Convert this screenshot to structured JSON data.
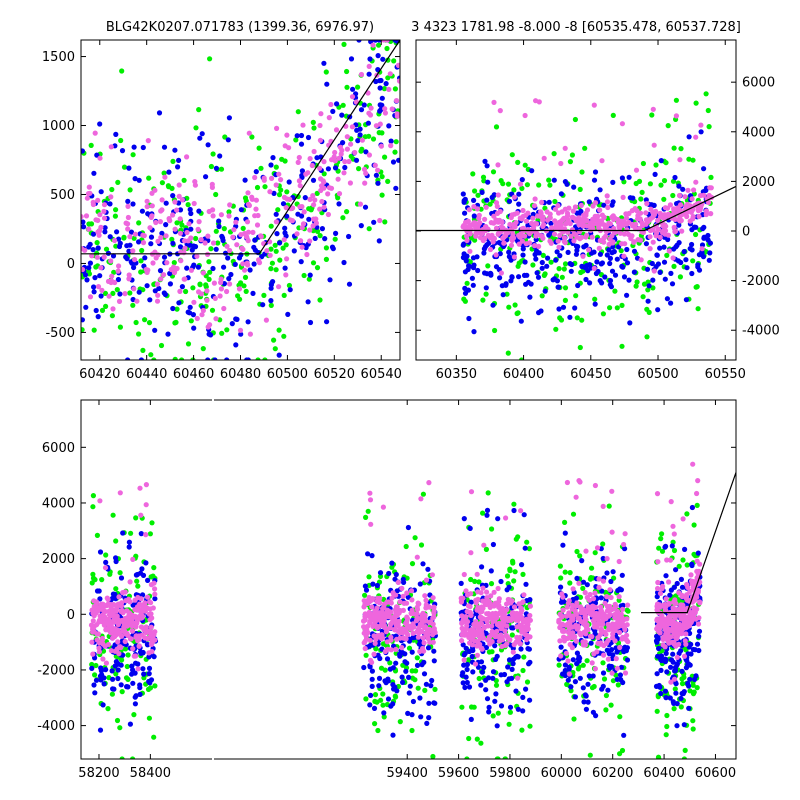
{
  "chart_data": [
    {
      "type": "scatter",
      "panel": "top-left",
      "title": "BLG42K0207.071783 (1399.36, 6976.97)",
      "xlim": [
        60412,
        60548
      ],
      "ylim": [
        -700,
        1620
      ],
      "xticks": [
        60420,
        60440,
        60460,
        60480,
        60500,
        60520,
        60540
      ],
      "yticks": [
        -500,
        0,
        500,
        1000,
        1500
      ],
      "ytick_side": "left",
      "grid": false,
      "colors": {
        "green": "#00ee00",
        "blue": "#0000ee",
        "pink": "#ee66dd",
        "model": "#000000"
      },
      "model_line": {
        "x": [
          60412,
          60488,
          60548
        ],
        "y": [
          70,
          70,
          1620
        ]
      },
      "series": [
        {
          "color": "#00ee00",
          "n": 320,
          "x_range": [
            60412,
            60548
          ],
          "y_center": 80,
          "y_spread": 420,
          "y_min": -700,
          "y_max": 1620
        },
        {
          "color": "#0000ee",
          "n": 360,
          "x_range": [
            60412,
            60548
          ],
          "y_center": 60,
          "y_spread": 380,
          "y_min": -700,
          "y_max": 1620
        },
        {
          "color": "#ee66dd",
          "n": 340,
          "x_range": [
            60412,
            60548
          ],
          "y_center": 120,
          "y_spread": 300,
          "y_min": -700,
          "y_max": 1620
        }
      ]
    },
    {
      "type": "scatter",
      "panel": "top-right",
      "title": "3 4323 1781.98 -8.000 -8 [60535.478, 60537.728]",
      "xlim": [
        60320,
        60558
      ],
      "ylim": [
        -5200,
        7700
      ],
      "xticks": [
        60350,
        60400,
        60450,
        60500,
        60550
      ],
      "yticks": [
        -4000,
        -2000,
        0,
        2000,
        4000,
        6000
      ],
      "ytick_side": "right",
      "grid": false,
      "model_line": {
        "x": [
          60320,
          60490,
          60558
        ],
        "y": [
          20,
          20,
          1800
        ]
      },
      "series": [
        {
          "color": "#00ee00",
          "n": 260,
          "x_range": [
            60355,
            60540
          ],
          "y_center": -400,
          "y_spread": 1800,
          "y_min": -5200,
          "y_max": 7600
        },
        {
          "color": "#0000ee",
          "n": 420,
          "x_range": [
            60355,
            60540
          ],
          "y_center": -700,
          "y_spread": 1300,
          "y_min": -5200,
          "y_max": 4000
        },
        {
          "color": "#ee66dd",
          "n": 480,
          "x_range": [
            60355,
            60540
          ],
          "y_center": 150,
          "y_spread": 420,
          "y_min": -5200,
          "y_max": 7000
        }
      ]
    },
    {
      "type": "scatter",
      "panel": "bottom",
      "title": "",
      "xlim": [
        58130,
        60680
      ],
      "ylim": [
        -5200,
        7700
      ],
      "xticks": [
        58200,
        58400,
        59400,
        59600,
        59800,
        60000,
        60200,
        60400,
        60600
      ],
      "yticks": [
        -4000,
        -2000,
        0,
        2000,
        4000,
        6000
      ],
      "ytick_side": "left",
      "grid": false,
      "model_line": {
        "x": [
          60310,
          60490,
          60680
        ],
        "y": [
          60,
          60,
          5100
        ]
      },
      "seasons": [
        {
          "x_range": [
            58170,
            58420
          ]
        },
        {
          "x_range": [
            59230,
            59510
          ]
        },
        {
          "x_range": [
            59610,
            59880
          ]
        },
        {
          "x_range": [
            59990,
            60260
          ]
        },
        {
          "x_range": [
            60370,
            60540
          ]
        }
      ],
      "series": [
        {
          "color": "#00ee00",
          "n_per_season": 120,
          "y_center": -1000,
          "y_spread": 1900,
          "y_min": -5200,
          "y_max": 7600
        },
        {
          "color": "#0000ee",
          "n_per_season": 180,
          "y_center": -900,
          "y_spread": 1300,
          "y_min": -5200,
          "y_max": 7000
        },
        {
          "color": "#ee66dd",
          "n_per_season": 260,
          "y_center": -300,
          "y_spread": 520,
          "y_min": -5200,
          "y_max": 7000
        }
      ]
    }
  ]
}
